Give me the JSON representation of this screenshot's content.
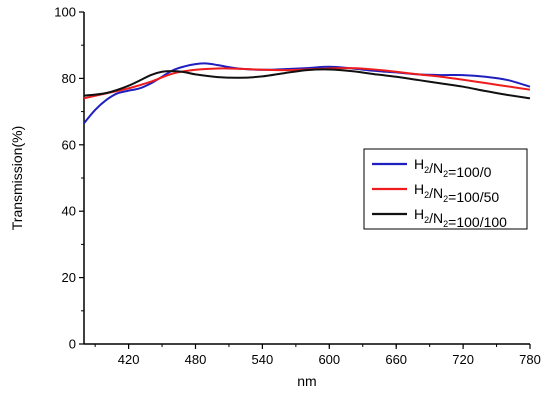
{
  "chart_data": {
    "type": "line",
    "title": "",
    "xlabel": "nm",
    "ylabel": "Transmission(%)",
    "xlim": [
      380,
      780
    ],
    "ylim": [
      0,
      100
    ],
    "xticks": [
      420,
      480,
      540,
      600,
      660,
      720,
      780
    ],
    "yticks": [
      0,
      20,
      40,
      60,
      80,
      100
    ],
    "legend_position": "center-right",
    "grid": false,
    "series": [
      {
        "name": "H2/N2=100/0",
        "label_parts": {
          "a": "H",
          "a_sub": "2",
          "sep": "/N",
          "b_sub": "2",
          "rest": "=100/0"
        },
        "color": "#1f1fbf",
        "x": [
          380,
          390,
          400,
          410,
          420,
          430,
          440,
          450,
          460,
          470,
          480,
          490,
          500,
          510,
          520,
          540,
          560,
          580,
          600,
          620,
          640,
          660,
          680,
          700,
          720,
          740,
          760,
          780
        ],
        "y": [
          66.5,
          70.5,
          73.5,
          75.5,
          76.3,
          77.0,
          78.5,
          80.5,
          82.5,
          83.6,
          84.3,
          84.5,
          84.0,
          83.4,
          82.9,
          82.6,
          82.8,
          83.1,
          83.5,
          83.0,
          82.3,
          81.8,
          81.2,
          81.0,
          81.0,
          80.5,
          79.5,
          77.5
        ]
      },
      {
        "name": "H2/N2=100/50",
        "label_parts": {
          "a": "H",
          "a_sub": "2",
          "sep": "/N",
          "b_sub": "2",
          "rest": "=100/50"
        },
        "color": "#ee1c1c",
        "x": [
          380,
          400,
          420,
          440,
          460,
          480,
          500,
          520,
          540,
          560,
          580,
          600,
          620,
          640,
          660,
          680,
          700,
          720,
          740,
          760,
          780
        ],
        "y": [
          74.0,
          75.5,
          77.0,
          79.0,
          81.5,
          82.6,
          83.0,
          82.9,
          82.6,
          82.5,
          82.7,
          83.0,
          83.1,
          82.7,
          82.0,
          81.2,
          80.5,
          79.6,
          78.6,
          77.6,
          76.6
        ]
      },
      {
        "name": "H2/N2=100/100",
        "label_parts": {
          "a": "H",
          "a_sub": "2",
          "sep": "/N",
          "b_sub": "2",
          "rest": "=100/100"
        },
        "color": "#111111",
        "x": [
          380,
          400,
          420,
          440,
          450,
          460,
          470,
          480,
          500,
          520,
          540,
          560,
          580,
          600,
          620,
          640,
          660,
          680,
          700,
          720,
          740,
          760,
          780
        ],
        "y": [
          74.8,
          75.6,
          77.8,
          81.0,
          82.0,
          82.2,
          81.9,
          81.2,
          80.4,
          80.2,
          80.6,
          81.6,
          82.5,
          82.7,
          82.2,
          81.3,
          80.5,
          79.5,
          78.5,
          77.5,
          76.2,
          75.0,
          74.0
        ]
      }
    ]
  }
}
